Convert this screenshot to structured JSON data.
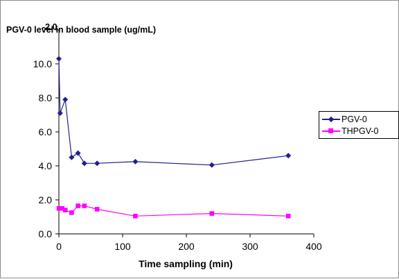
{
  "chart_data": {
    "type": "line",
    "title": "PGV-0 level in blood sample (ug/mL)",
    "title_overlap": "-2.0",
    "xlabel": "Time sampling (min)",
    "ylabel": "",
    "xlim": [
      0,
      400
    ],
    "ylim": [
      0,
      12
    ],
    "x_ticks": [
      0,
      100,
      200,
      300,
      400
    ],
    "y_ticks": [
      "0.0",
      "2.0",
      "4.0",
      "6.0",
      "8.0",
      "10.0"
    ],
    "y_tick_values": [
      0,
      2,
      4,
      6,
      8,
      10
    ],
    "grid": false,
    "legend_position": "right",
    "series": [
      {
        "name": "PGV-0",
        "color": "#1f1f8f",
        "marker": "diamond",
        "x": [
          0,
          2,
          10,
          20,
          30,
          40,
          60,
          120,
          240,
          360
        ],
        "y": [
          10.3,
          7.1,
          7.9,
          4.5,
          4.75,
          4.15,
          4.15,
          4.25,
          4.05,
          4.6
        ]
      },
      {
        "name": "THPGV-0",
        "color": "#ff00ff",
        "marker": "square",
        "x": [
          0,
          5,
          10,
          20,
          30,
          40,
          60,
          120,
          240,
          360
        ],
        "y": [
          1.5,
          1.5,
          1.4,
          1.25,
          1.65,
          1.65,
          1.45,
          1.05,
          1.2,
          1.05
        ]
      }
    ]
  }
}
